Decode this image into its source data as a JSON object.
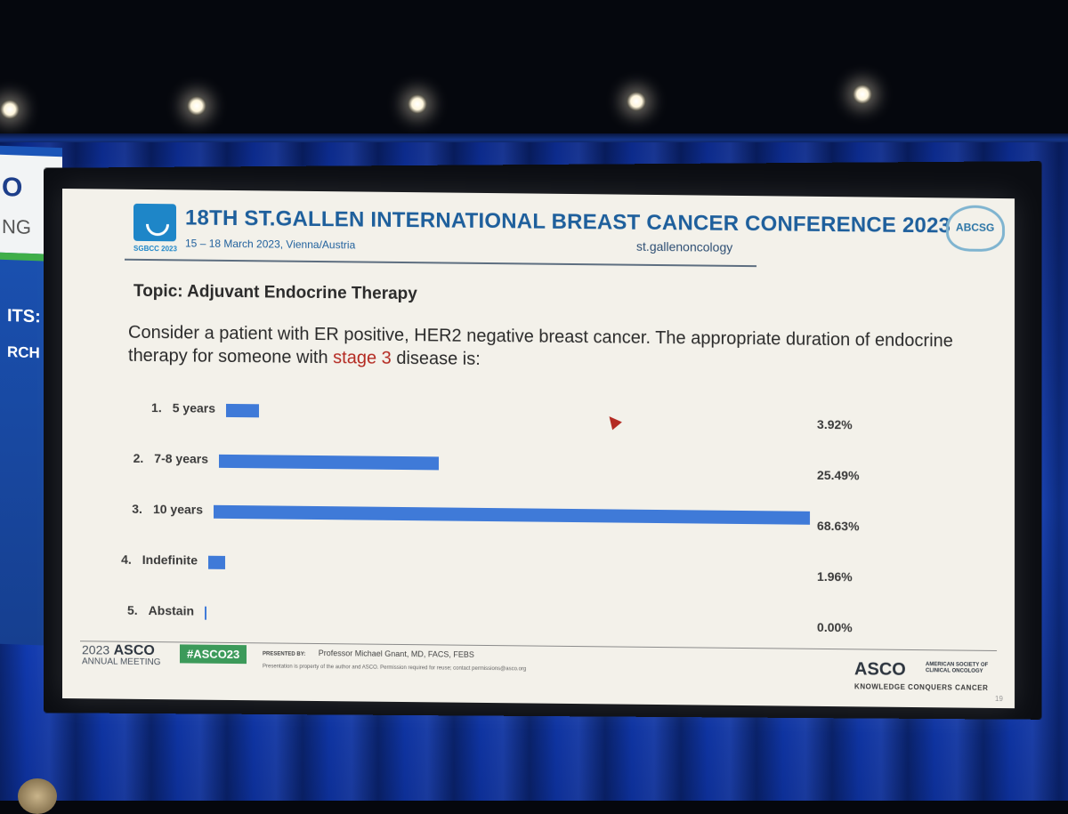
{
  "banner": {
    "letter_o": "O",
    "ng": "NG",
    "its": "ITS:",
    "rch": "RCH"
  },
  "header": {
    "logo_tag": "SGBCC 2023",
    "title": "18TH ST.GALLEN INTERNATIONAL BREAST CANCER CONFERENCE 2023",
    "subtitle": "15 – 18 March 2023, Vienna/Austria",
    "st_gallen_brand": "st.gallenoncology",
    "abcsg": "ABCSG"
  },
  "slide": {
    "topic": "Topic: Adjuvant Endocrine Therapy",
    "question_part1": "Consider a patient with ER positive, HER2 negative breast cancer. The appropriate duration of endocrine therapy for someone with ",
    "question_highlight": "stage 3",
    "question_part2": " disease is:"
  },
  "chart_data": {
    "type": "bar",
    "orientation": "horizontal",
    "categories": [
      "5 years",
      "7-8 years",
      "10 years",
      "Indefinite",
      "Abstain"
    ],
    "numbers": [
      "1.",
      "2.",
      "3.",
      "4.",
      "5."
    ],
    "values": [
      3.92,
      25.49,
      68.63,
      1.96,
      0.0
    ],
    "value_labels": [
      "3.92%",
      "25.49%",
      "68.63%",
      "1.96%",
      "0.00%"
    ],
    "bar_color": "#3f7ad8",
    "xlim": [
      0,
      68.63
    ]
  },
  "footer": {
    "meeting_year": "2023",
    "meeting_name": "ASCO",
    "meeting_sub": "ANNUAL MEETING",
    "hashtag": "#ASCO23",
    "presented_label": "PRESENTED BY:",
    "presenter": "Professor Michael Gnant, MD, FACS, FEBS",
    "permission": "Presentation is property of the author and ASCO. Permission required for reuse; contact permissions@asco.org",
    "asco_logo": "ASCO",
    "asco_full": "AMERICAN SOCIETY OF CLINICAL ONCOLOGY",
    "asco_tagline": "KNOWLEDGE CONQUERS CANCER",
    "page_number": "19"
  }
}
